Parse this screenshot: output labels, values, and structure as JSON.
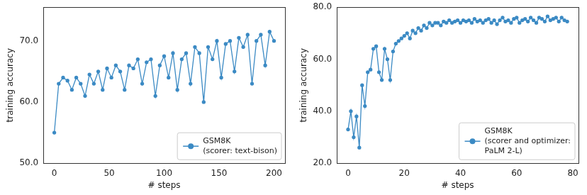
{
  "chart_data": [
    {
      "type": "line",
      "x": [
        0,
        4,
        8,
        12,
        16,
        20,
        24,
        28,
        32,
        36,
        40,
        44,
        48,
        52,
        56,
        60,
        64,
        68,
        72,
        76,
        80,
        84,
        88,
        92,
        96,
        100,
        104,
        108,
        112,
        116,
        120,
        124,
        128,
        132,
        136,
        140,
        144,
        148,
        152,
        156,
        160,
        164,
        168,
        172,
        176,
        180,
        184,
        188,
        192,
        196,
        200
      ],
      "series": [
        {
          "name": "GSM8K\n(scorer: text-bison)",
          "color": "#3b8ac4",
          "marker": "circle",
          "line_style": "solid",
          "values": [
            55,
            63,
            64,
            63.5,
            62,
            64,
            63,
            61,
            64.5,
            63,
            65,
            62,
            65.5,
            64,
            66,
            65,
            62,
            66,
            65.5,
            67,
            63,
            66.5,
            67,
            61,
            66,
            67.5,
            64,
            68,
            62,
            67,
            68,
            63,
            69,
            68,
            60,
            69,
            67,
            70,
            64,
            69.5,
            70,
            65,
            70.5,
            69,
            71,
            63,
            70,
            71,
            66,
            71.5,
            70
          ]
        }
      ],
      "x_label": "# steps",
      "y_label": "training accuracy",
      "xlim": [
        -10,
        210
      ],
      "ylim": [
        50,
        75.5
      ],
      "xticks": [
        0,
        50,
        100,
        150,
        200
      ],
      "yticks": [
        {
          "value": 50,
          "label": "50.0"
        },
        {
          "value": 60,
          "label": "60.0"
        },
        {
          "value": 70,
          "label": "70.0"
        }
      ],
      "legend": "lower right",
      "grid": false
    },
    {
      "type": "line",
      "x": [
        0,
        1,
        2,
        3,
        4,
        5,
        6,
        7,
        8,
        9,
        10,
        11,
        12,
        13,
        14,
        15,
        16,
        17,
        18,
        19,
        20,
        21,
        22,
        23,
        24,
        25,
        26,
        27,
        28,
        29,
        30,
        31,
        32,
        33,
        34,
        35,
        36,
        37,
        38,
        39,
        40,
        41,
        42,
        43,
        44,
        45,
        46,
        47,
        48,
        49,
        50,
        51,
        52,
        53,
        54,
        55,
        56,
        57,
        58,
        59,
        60,
        61,
        62,
        63,
        64,
        65,
        66,
        67,
        68,
        69,
        70,
        71,
        72,
        73,
        74,
        75,
        76,
        77,
        78
      ],
      "series": [
        {
          "name": "GSM8K\n(scorer and optimizer:\nPaLM 2-L)",
          "color": "#3b8ac4",
          "marker": "circle",
          "line_style": "solid",
          "values": [
            33,
            40,
            30,
            38,
            26,
            50,
            42,
            55,
            56,
            64,
            65,
            55,
            52,
            64,
            60,
            52,
            63,
            66,
            67,
            68,
            69,
            70,
            68,
            71,
            70,
            72,
            71,
            73,
            72,
            74,
            73,
            74,
            74,
            73,
            74.5,
            74,
            75,
            74,
            74.5,
            75,
            74,
            75,
            74.5,
            75,
            74,
            75.5,
            74.5,
            75,
            74,
            75,
            75.5,
            74,
            75,
            73.5,
            75,
            76,
            74.5,
            75,
            74,
            75.5,
            76,
            74,
            75,
            75.5,
            74.5,
            76,
            75,
            74,
            76,
            75.5,
            74.5,
            76.5,
            75,
            75.5,
            76,
            74.5,
            76,
            75,
            74.5
          ]
        }
      ],
      "x_label": "# steps",
      "y_label": "training accuracy",
      "xlim": [
        -4,
        82
      ],
      "ylim": [
        20,
        80
      ],
      "xticks": [
        0,
        20,
        40,
        60,
        80
      ],
      "yticks": [
        {
          "value": 20,
          "label": "20.0"
        },
        {
          "value": 40,
          "label": "40.0"
        },
        {
          "value": 60,
          "label": "60.0"
        },
        {
          "value": 80,
          "label": "80.0"
        }
      ],
      "legend": "lower right",
      "grid": false
    }
  ]
}
